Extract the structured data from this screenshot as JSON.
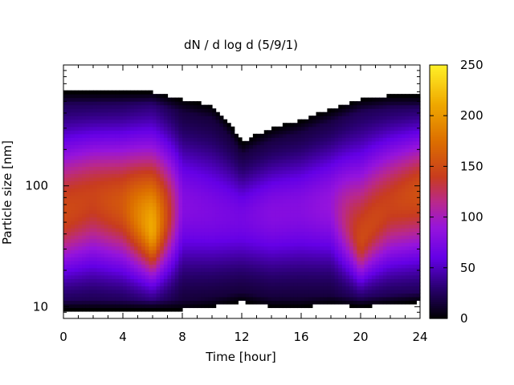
{
  "chart_data": {
    "type": "heatmap",
    "title": "dN / d log d (5/9/1)",
    "xlabel": "Time [hour]",
    "ylabel": "Particle size [nm]",
    "xlim": [
      0,
      24
    ],
    "ylim": [
      8,
      1000
    ],
    "yscale": "log",
    "grid": false,
    "x_ticks": [
      0,
      4,
      8,
      12,
      16,
      20,
      24
    ],
    "x_tick_labels": [
      "0",
      "4",
      "8",
      "12",
      "16",
      "20",
      "24"
    ],
    "y_ticks": [
      10,
      100
    ],
    "y_tick_labels": [
      "10",
      "100"
    ],
    "colorbar": {
      "min": 0,
      "max": 250,
      "ticks": [
        0,
        50,
        100,
        150,
        200,
        250
      ],
      "tick_labels": [
        "0",
        "50",
        "100",
        "150",
        "200",
        "250"
      ],
      "colormap": "black-purple-magenta-red-orange-yellow"
    },
    "distribution": {
      "time_hours": [
        0,
        2,
        4,
        6,
        8,
        10,
        12,
        14,
        16,
        18,
        20,
        22,
        24
      ],
      "upper_size_nm": [
        600,
        600,
        600,
        600,
        520,
        460,
        230,
        300,
        350,
        430,
        520,
        560,
        560
      ],
      "lower_size_nm": [
        9.5,
        9.5,
        9.5,
        9.5,
        9.5,
        10,
        11,
        10,
        10,
        10.5,
        10,
        10.5,
        11
      ],
      "peak_size_nm": [
        60,
        80,
        70,
        45,
        70,
        60,
        55,
        60,
        65,
        70,
        35,
        70,
        90
      ],
      "peak_value": [
        150,
        145,
        160,
        215,
        80,
        75,
        70,
        80,
        80,
        90,
        150,
        145,
        155
      ]
    }
  }
}
